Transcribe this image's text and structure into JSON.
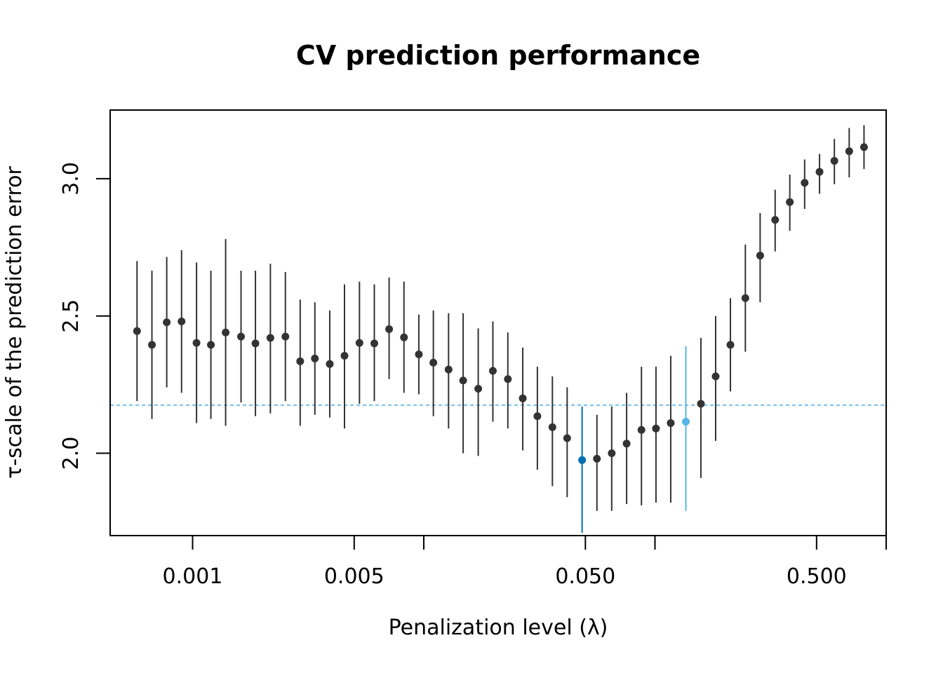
{
  "chart_data": {
    "type": "scatter",
    "title": "CV prediction performance",
    "xlabel": "Penalization level (λ)",
    "ylabel": "τ-scale of the prediction error",
    "x_scale": "log",
    "xlim": [
      0.00044,
      1.0
    ],
    "ylim": [
      1.7,
      3.25
    ],
    "x_ticks": [
      {
        "value": 0.001,
        "label": "0.001"
      },
      {
        "value": 0.005,
        "label": "0.005"
      },
      {
        "value": 0.01,
        "label": ""
      },
      {
        "value": 0.05,
        "label": "0.050"
      },
      {
        "value": 0.1,
        "label": ""
      },
      {
        "value": 0.5,
        "label": "0.500"
      },
      {
        "value": 1.0,
        "label": ""
      }
    ],
    "y_ticks": [
      {
        "value": 2.0,
        "label": "2.0"
      },
      {
        "value": 2.5,
        "label": "2.5"
      },
      {
        "value": 3.0,
        "label": "3.0"
      }
    ],
    "grid": false,
    "reference_line": {
      "y": 2.175,
      "style": "dashed",
      "color": "#56b4e9"
    },
    "colors": {
      "default": "#333333",
      "selected_min": "#0072b2",
      "selected_1se": "#56b4e9"
    },
    "series": [
      {
        "points": [
          {
            "x": 0.000575,
            "y": 2.445,
            "lo": 2.19,
            "hi": 2.7
          },
          {
            "x": 0.000667,
            "y": 2.395,
            "lo": 2.125,
            "hi": 2.665
          },
          {
            "x": 0.000773,
            "y": 2.477,
            "lo": 2.24,
            "hi": 2.715
          },
          {
            "x": 0.000896,
            "y": 2.48,
            "lo": 2.22,
            "hi": 2.74
          },
          {
            "x": 0.00104,
            "y": 2.402,
            "lo": 2.11,
            "hi": 2.695
          },
          {
            "x": 0.0012,
            "y": 2.395,
            "lo": 2.125,
            "hi": 2.665
          },
          {
            "x": 0.00139,
            "y": 2.44,
            "lo": 2.1,
            "hi": 2.78
          },
          {
            "x": 0.00162,
            "y": 2.425,
            "lo": 2.185,
            "hi": 2.665
          },
          {
            "x": 0.00187,
            "y": 2.4,
            "lo": 2.135,
            "hi": 2.665
          },
          {
            "x": 0.00217,
            "y": 2.42,
            "lo": 2.145,
            "hi": 2.69
          },
          {
            "x": 0.00252,
            "y": 2.425,
            "lo": 2.19,
            "hi": 2.66
          },
          {
            "x": 0.00292,
            "y": 2.335,
            "lo": 2.1,
            "hi": 2.56
          },
          {
            "x": 0.00338,
            "y": 2.345,
            "lo": 2.14,
            "hi": 2.55
          },
          {
            "x": 0.00392,
            "y": 2.325,
            "lo": 2.13,
            "hi": 2.52
          },
          {
            "x": 0.00454,
            "y": 2.355,
            "lo": 2.09,
            "hi": 2.615
          },
          {
            "x": 0.00527,
            "y": 2.402,
            "lo": 2.18,
            "hi": 2.625
          },
          {
            "x": 0.00611,
            "y": 2.4,
            "lo": 2.19,
            "hi": 2.615
          },
          {
            "x": 0.00708,
            "y": 2.452,
            "lo": 2.27,
            "hi": 2.64
          },
          {
            "x": 0.00821,
            "y": 2.422,
            "lo": 2.22,
            "hi": 2.625
          },
          {
            "x": 0.00952,
            "y": 2.36,
            "lo": 2.215,
            "hi": 2.505
          },
          {
            "x": 0.011,
            "y": 2.33,
            "lo": 2.135,
            "hi": 2.52
          },
          {
            "x": 0.0128,
            "y": 2.305,
            "lo": 2.09,
            "hi": 2.51
          },
          {
            "x": 0.0148,
            "y": 2.265,
            "lo": 2.0,
            "hi": 2.51
          },
          {
            "x": 0.0172,
            "y": 2.235,
            "lo": 1.99,
            "hi": 2.455
          },
          {
            "x": 0.0199,
            "y": 2.3,
            "lo": 2.115,
            "hi": 2.48
          },
          {
            "x": 0.0231,
            "y": 2.27,
            "lo": 2.09,
            "hi": 2.44
          },
          {
            "x": 0.0268,
            "y": 2.2,
            "lo": 2.01,
            "hi": 2.385
          },
          {
            "x": 0.031,
            "y": 2.135,
            "lo": 1.94,
            "hi": 2.315
          },
          {
            "x": 0.036,
            "y": 2.095,
            "lo": 1.88,
            "hi": 2.28
          },
          {
            "x": 0.0417,
            "y": 2.055,
            "lo": 1.84,
            "hi": 2.24
          },
          {
            "x": 0.0484,
            "y": 1.975,
            "lo": 1.71,
            "hi": 2.17,
            "role": "selected_min"
          },
          {
            "x": 0.0561,
            "y": 1.98,
            "lo": 1.79,
            "hi": 2.14
          },
          {
            "x": 0.065,
            "y": 2.0,
            "lo": 1.79,
            "hi": 2.17
          },
          {
            "x": 0.0754,
            "y": 2.035,
            "lo": 1.815,
            "hi": 2.22
          },
          {
            "x": 0.0874,
            "y": 2.085,
            "lo": 1.81,
            "hi": 2.315
          },
          {
            "x": 0.101,
            "y": 2.09,
            "lo": 1.82,
            "hi": 2.315
          },
          {
            "x": 0.117,
            "y": 2.11,
            "lo": 1.82,
            "hi": 2.355
          },
          {
            "x": 0.136,
            "y": 2.115,
            "lo": 1.79,
            "hi": 2.39,
            "role": "selected_1se"
          },
          {
            "x": 0.158,
            "y": 2.18,
            "lo": 1.91,
            "hi": 2.42
          },
          {
            "x": 0.183,
            "y": 2.28,
            "lo": 2.045,
            "hi": 2.5
          },
          {
            "x": 0.212,
            "y": 2.395,
            "lo": 2.225,
            "hi": 2.565
          },
          {
            "x": 0.246,
            "y": 2.565,
            "lo": 2.37,
            "hi": 2.76
          },
          {
            "x": 0.285,
            "y": 2.72,
            "lo": 2.55,
            "hi": 2.875
          },
          {
            "x": 0.331,
            "y": 2.85,
            "lo": 2.735,
            "hi": 2.96
          },
          {
            "x": 0.383,
            "y": 2.915,
            "lo": 2.81,
            "hi": 3.015
          },
          {
            "x": 0.444,
            "y": 2.985,
            "lo": 2.89,
            "hi": 3.07
          },
          {
            "x": 0.515,
            "y": 3.025,
            "lo": 2.945,
            "hi": 3.09
          },
          {
            "x": 0.597,
            "y": 3.065,
            "lo": 2.98,
            "hi": 3.145
          },
          {
            "x": 0.692,
            "y": 3.1,
            "lo": 3.005,
            "hi": 3.185
          },
          {
            "x": 0.802,
            "y": 3.115,
            "lo": 3.035,
            "hi": 3.195
          }
        ]
      }
    ]
  }
}
